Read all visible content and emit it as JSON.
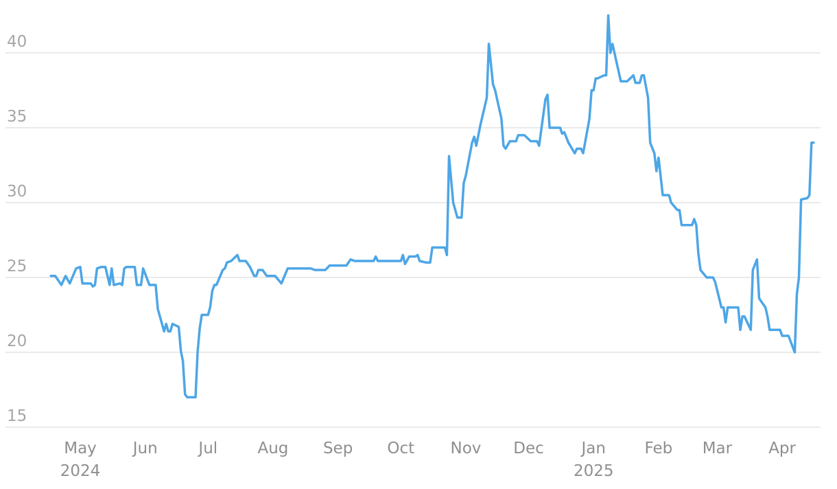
{
  "chart_data": {
    "type": "line",
    "title": "",
    "xlabel": "",
    "ylabel": "",
    "ylim": [
      15,
      42.5
    ],
    "yticks": [
      15,
      20,
      25,
      30,
      35,
      40
    ],
    "xticks": [
      {
        "date": "2024-05-01",
        "label": "May",
        "sublabel": "2024"
      },
      {
        "date": "2024-06-01",
        "label": "Jun"
      },
      {
        "date": "2024-07-01",
        "label": "Jul"
      },
      {
        "date": "2024-08-01",
        "label": "Aug"
      },
      {
        "date": "2024-09-01",
        "label": "Sep"
      },
      {
        "date": "2024-10-01",
        "label": "Oct"
      },
      {
        "date": "2024-11-01",
        "label": "Nov"
      },
      {
        "date": "2024-12-01",
        "label": "Dec"
      },
      {
        "date": "2025-01-01",
        "label": "Jan",
        "sublabel": "2025"
      },
      {
        "date": "2025-02-01",
        "label": "Feb"
      },
      {
        "date": "2025-03-01",
        "label": "Mar"
      },
      {
        "date": "2025-04-01",
        "label": "Apr"
      }
    ],
    "grid": "horizontal",
    "legend": "none",
    "colors": {
      "line": "#4da6e6",
      "grid": "#e3e3e3",
      "tick_text": "#a6a6a6"
    },
    "series": [
      {
        "x": [
          "2024-04-17",
          "2024-04-19",
          "2024-04-22",
          "2024-04-24",
          "2024-04-26",
          "2024-04-29",
          "2024-05-01",
          "2024-05-02",
          "2024-05-06",
          "2024-05-07",
          "2024-05-08",
          "2024-05-09",
          "2024-05-11",
          "2024-05-13",
          "2024-05-15",
          "2024-05-16",
          "2024-05-17",
          "2024-05-20",
          "2024-05-21",
          "2024-05-22",
          "2024-05-23",
          "2024-05-27",
          "2024-05-28",
          "2024-05-30",
          "2024-05-31",
          "2024-06-03",
          "2024-06-06",
          "2024-06-07",
          "2024-06-10",
          "2024-06-11",
          "2024-06-12",
          "2024-06-13",
          "2024-06-14",
          "2024-06-17",
          "2024-06-18",
          "2024-06-19",
          "2024-06-20",
          "2024-06-21",
          "2024-06-24",
          "2024-06-25",
          "2024-06-26",
          "2024-06-27",
          "2024-06-28",
          "2024-07-01",
          "2024-07-02",
          "2024-07-03",
          "2024-07-04",
          "2024-07-05",
          "2024-07-08",
          "2024-07-09",
          "2024-07-10",
          "2024-07-12",
          "2024-07-15",
          "2024-07-16",
          "2024-07-19",
          "2024-07-21",
          "2024-07-23",
          "2024-07-24",
          "2024-07-25",
          "2024-07-27",
          "2024-07-29",
          "2024-08-01",
          "2024-08-02",
          "2024-08-05",
          "2024-08-08",
          "2024-08-09",
          "2024-08-19",
          "2024-08-21",
          "2024-08-26",
          "2024-08-28",
          "2024-09-05",
          "2024-09-07",
          "2024-09-09",
          "2024-09-11",
          "2024-09-18",
          "2024-09-19",
          "2024-09-20",
          "2024-10-01",
          "2024-10-02",
          "2024-10-03",
          "2024-10-05",
          "2024-10-08",
          "2024-10-09",
          "2024-10-10",
          "2024-10-13",
          "2024-10-15",
          "2024-10-16",
          "2024-10-22",
          "2024-10-23",
          "2024-10-24",
          "2024-10-26",
          "2024-10-28",
          "2024-10-30",
          "2024-10-31",
          "2024-11-01",
          "2024-11-04",
          "2024-11-05",
          "2024-11-06",
          "2024-11-08",
          "2024-11-11",
          "2024-11-12",
          "2024-11-14",
          "2024-11-15",
          "2024-11-18",
          "2024-11-19",
          "2024-11-20",
          "2024-11-22",
          "2024-11-25",
          "2024-11-26",
          "2024-11-29",
          "2024-12-02",
          "2024-12-05",
          "2024-12-06",
          "2024-12-09",
          "2024-12-10",
          "2024-12-11",
          "2024-12-16",
          "2024-12-17",
          "2024-12-18",
          "2024-12-20",
          "2024-12-23",
          "2024-12-24",
          "2024-12-26",
          "2024-12-27",
          "2024-12-30",
          "2024-12-31",
          "2025-01-01",
          "2025-01-02",
          "2025-01-03",
          "2025-01-06",
          "2025-01-07",
          "2025-01-08",
          "2025-01-09",
          "2025-01-10",
          "2025-01-14",
          "2025-01-17",
          "2025-01-20",
          "2025-01-21",
          "2025-01-23",
          "2025-01-24",
          "2025-01-25",
          "2025-01-27",
          "2025-01-28",
          "2025-01-30",
          "2025-01-31",
          "2025-02-01",
          "2025-02-03",
          "2025-02-06",
          "2025-02-07",
          "2025-02-10",
          "2025-02-11",
          "2025-02-12",
          "2025-02-17",
          "2025-02-18",
          "2025-02-19",
          "2025-02-20",
          "2025-02-21",
          "2025-02-24",
          "2025-02-27",
          "2025-02-28",
          "2025-03-03",
          "2025-03-04",
          "2025-03-05",
          "2025-03-06",
          "2025-03-11",
          "2025-03-12",
          "2025-03-13",
          "2025-03-14",
          "2025-03-17",
          "2025-03-18",
          "2025-03-20",
          "2025-03-21",
          "2025-03-24",
          "2025-03-25",
          "2025-03-26",
          "2025-03-31",
          "2025-04-01",
          "2025-04-04",
          "2025-04-07",
          "2025-04-08",
          "2025-04-09",
          "2025-04-10",
          "2025-04-13",
          "2025-04-14",
          "2025-04-15",
          "2025-04-16"
        ],
        "y": [
          25.1,
          25.1,
          24.5,
          25.1,
          24.6,
          25.6,
          25.7,
          24.6,
          24.6,
          24.4,
          24.5,
          25.6,
          25.7,
          25.7,
          24.5,
          25.6,
          24.5,
          24.6,
          24.5,
          25.6,
          25.7,
          25.7,
          24.5,
          24.5,
          25.6,
          24.5,
          24.5,
          22.9,
          21.4,
          21.9,
          21.4,
          21.4,
          21.9,
          21.7,
          20.1,
          19.4,
          17.2,
          17.0,
          17.0,
          17.0,
          20.0,
          21.6,
          22.5,
          22.5,
          23.0,
          24.1,
          24.5,
          24.5,
          25.5,
          25.6,
          26.0,
          26.1,
          26.5,
          26.1,
          26.1,
          25.7,
          25.1,
          25.1,
          25.5,
          25.5,
          25.1,
          25.1,
          25.1,
          24.6,
          25.6,
          25.6,
          25.6,
          25.5,
          25.5,
          25.8,
          25.8,
          26.2,
          26.1,
          26.1,
          26.1,
          26.4,
          26.1,
          26.1,
          26.5,
          25.9,
          26.4,
          26.4,
          26.5,
          26.1,
          26.0,
          26.0,
          27.0,
          27.0,
          26.5,
          33.1,
          30.0,
          29.0,
          29.0,
          31.3,
          31.8,
          34.0,
          34.4,
          33.8,
          35.2,
          37.0,
          40.6,
          37.9,
          37.5,
          35.6,
          33.8,
          33.6,
          34.1,
          34.1,
          34.5,
          34.5,
          34.1,
          34.1,
          33.8,
          36.9,
          37.2,
          35.0,
          35.0,
          34.6,
          34.7,
          34.0,
          33.3,
          33.6,
          33.6,
          33.3,
          35.6,
          37.5,
          37.5,
          38.3,
          38.3,
          38.5,
          38.5,
          42.5,
          40.0,
          40.6,
          38.1,
          38.1,
          38.5,
          38.0,
          38.0,
          38.5,
          38.5,
          37.0,
          34.0,
          33.3,
          32.1,
          33.0,
          30.5,
          30.5,
          30.0,
          29.5,
          29.5,
          28.5,
          28.5,
          28.9,
          28.5,
          26.6,
          25.5,
          25.0,
          25.0,
          24.7,
          23.0,
          23.0,
          22.0,
          23.0,
          23.0,
          21.5,
          22.4,
          22.4,
          21.5,
          25.5,
          26.2,
          23.6,
          23.0,
          22.4,
          21.5,
          21.5,
          21.1,
          21.1,
          20.0,
          23.9,
          25.0,
          30.2,
          30.3,
          30.5,
          34.0,
          34.0
        ]
      }
    ]
  }
}
